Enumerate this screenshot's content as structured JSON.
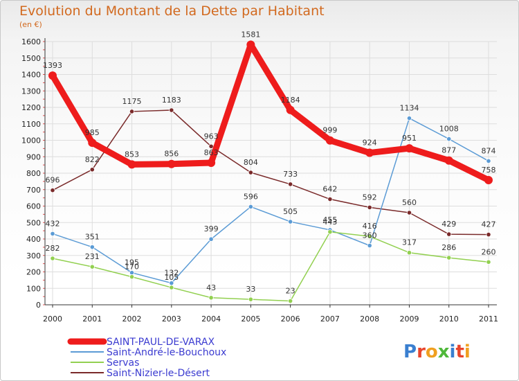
{
  "title": "Evolution du Montant de la Dette par Habitant",
  "subtitle": "(en €)",
  "logo": {
    "text": "Proxiti",
    "letters": [
      "P",
      "r",
      "o",
      "x",
      "i",
      "t",
      "i"
    ],
    "colors": [
      "#3a7fd0",
      "#e8452c",
      "#f0a020",
      "#4fb83a",
      "#3a7fd0",
      "#e8452c",
      "#f0a020"
    ]
  },
  "chart_data": {
    "type": "line",
    "title": "Evolution du Montant de la Dette par Habitant",
    "ylabel": "(en €)",
    "ylim": [
      0,
      1600
    ],
    "yticks": [
      0,
      100,
      200,
      300,
      400,
      500,
      600,
      700,
      800,
      900,
      1000,
      1100,
      1200,
      1300,
      1400,
      1500,
      1600
    ],
    "categories": [
      "2000",
      "2001",
      "2002",
      "2003",
      "2004",
      "2005",
      "2006",
      "2007",
      "2008",
      "2009",
      "2010",
      "2011"
    ],
    "grid": true,
    "legend_position": "bottom-left",
    "series": [
      {
        "name": "Saint-Nizier-le-Désert",
        "color": "#7a2a2a",
        "values": [
          696,
          822,
          1175,
          1183,
          963,
          804,
          733,
          642,
          592,
          560,
          429,
          427
        ],
        "labels": [
          "696",
          "822",
          "1175",
          "1183",
          "963",
          "804",
          "733",
          "642",
          "592",
          "560",
          "429",
          "427"
        ]
      },
      {
        "name": "Saint-André-le-Bouchoux",
        "color": "#5b9bd5",
        "values": [
          432,
          351,
          195,
          132,
          399,
          596,
          505,
          455,
          360,
          1134,
          1008,
          874
        ],
        "labels": [
          "432",
          "351",
          "195",
          "132",
          "399",
          "596",
          "505",
          "455",
          "360",
          "1134",
          "1008",
          "874"
        ]
      },
      {
        "name": "Servas",
        "color": "#92d050",
        "values": [
          282,
          231,
          170,
          105,
          43,
          33,
          23,
          443,
          416,
          317,
          286,
          260
        ],
        "labels": [
          "282",
          "231",
          "170",
          "105",
          "43",
          "33",
          "23",
          "443",
          "416",
          "317",
          "286",
          "260"
        ]
      },
      {
        "name": "SAINT-PAUL-DE-VARAX",
        "color": "#ee1c1c",
        "values": [
          1393,
          985,
          853,
          856,
          863,
          1581,
          1184,
          999,
          924,
          951,
          877,
          758
        ],
        "labels": [
          "1393",
          "985",
          "853",
          "856",
          "863",
          "1581",
          "1184",
          "999",
          "924",
          "951",
          "877",
          "758"
        ]
      }
    ]
  },
  "legend": [
    {
      "name": "SAINT-PAUL-DE-VARAX",
      "color": "#ee1c1c"
    },
    {
      "name": "Saint-André-le-Bouchoux",
      "color": "#5b9bd5"
    },
    {
      "name": "Servas",
      "color": "#92d050"
    },
    {
      "name": "Saint-Nizier-le-Désert",
      "color": "#7a2a2a"
    }
  ]
}
